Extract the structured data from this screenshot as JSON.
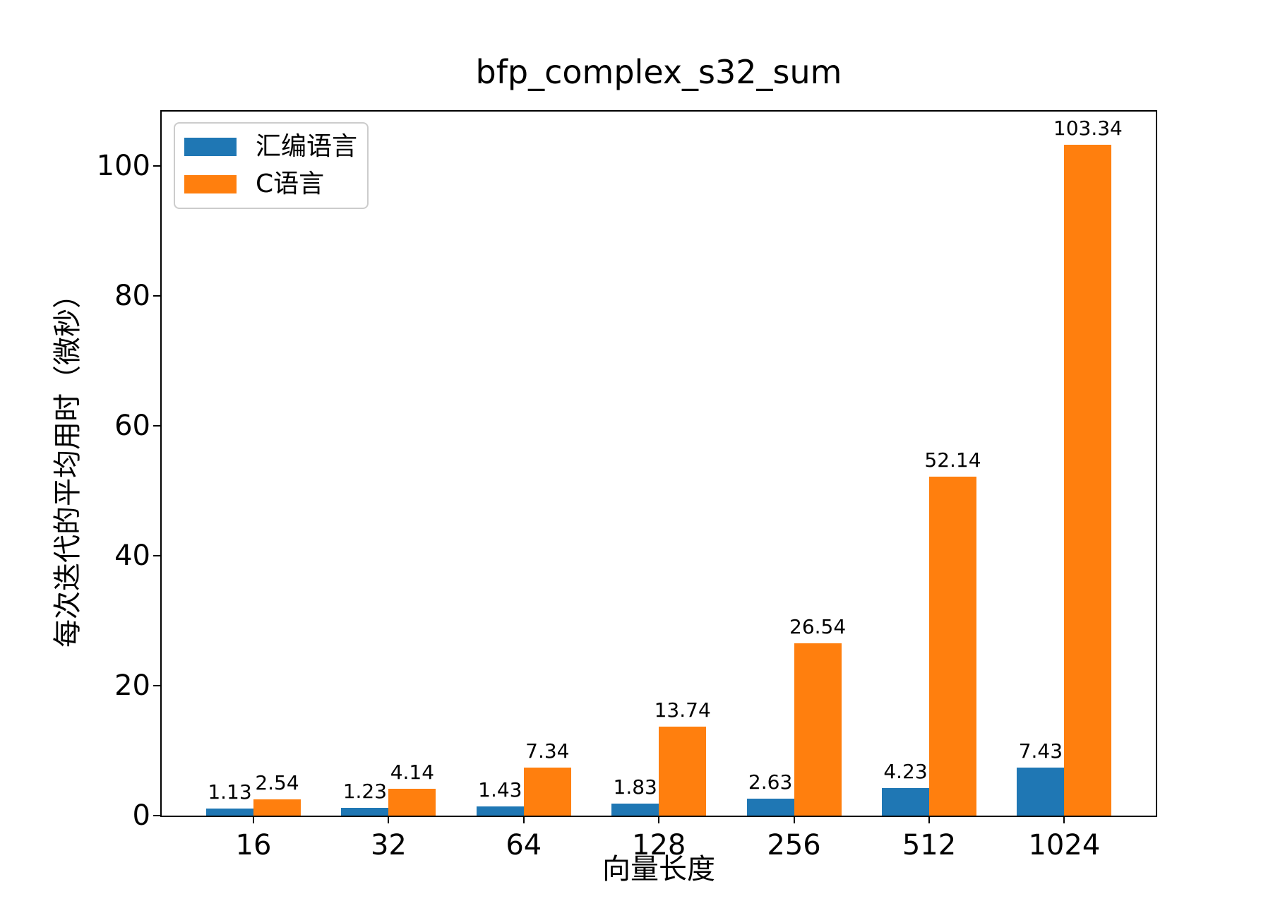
{
  "chart_data": {
    "type": "bar",
    "title": "bfp_complex_s32_sum",
    "xlabel": "向量长度",
    "ylabel": "每次迭代的平均用时（微秒）",
    "categories": [
      "16",
      "32",
      "64",
      "128",
      "256",
      "512",
      "1024"
    ],
    "series": [
      {
        "name": "汇编语言",
        "color": "#1f77b4",
        "values": [
          1.13,
          1.23,
          1.43,
          1.83,
          2.63,
          4.23,
          7.43
        ]
      },
      {
        "name": "C语言",
        "color": "#ff7f0e",
        "values": [
          2.54,
          4.14,
          7.34,
          13.74,
          26.54,
          52.14,
          103.34
        ]
      }
    ],
    "bar_value_labels": [
      "1.13",
      "1.23",
      "1.43",
      "1.83",
      "2.63",
      "4.23",
      "7.43",
      "2.54",
      "4.14",
      "7.34",
      "13.74",
      "26.54",
      "52.14",
      "103.34"
    ],
    "yticks": [
      "0",
      "20",
      "40",
      "60",
      "80",
      "100"
    ],
    "ylim": [
      0,
      108.4
    ],
    "grid": false,
    "legend_position": "upper-left",
    "axis_color": "#000000",
    "background_color": "#ffffff"
  }
}
